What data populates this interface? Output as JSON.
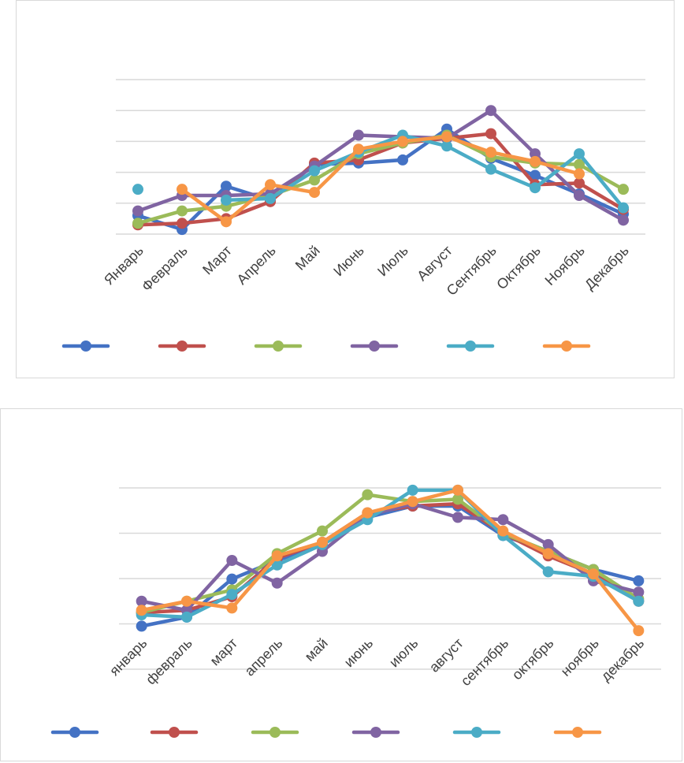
{
  "chart_data": [
    {
      "type": "line",
      "title": "",
      "xlabel": "",
      "ylabel": "",
      "categories": [
        "Январь",
        "Февраль",
        "Март",
        "Апрель",
        "Май",
        "Июнь",
        "Июль",
        "Август",
        "Сентябрь",
        "Октябрь",
        "Ноябрь",
        "Декабрь"
      ],
      "ylim": [
        0,
        5
      ],
      "grid": true,
      "legend_position": "bottom",
      "series": [
        {
          "color": "#4472C4",
          "values": [
            0.6,
            0.15,
            1.55,
            1.1,
            2.25,
            2.3,
            2.4,
            3.4,
            2.45,
            1.9,
            1.3,
            0.65
          ]
        },
        {
          "color": "#C0504D",
          "values": [
            0.3,
            0.35,
            0.5,
            1.05,
            2.3,
            2.4,
            2.95,
            3.1,
            3.25,
            1.6,
            1.65,
            0.8
          ]
        },
        {
          "color": "#9BBB59",
          "values": [
            0.35,
            0.75,
            0.9,
            1.25,
            1.75,
            2.6,
            2.95,
            3.2,
            2.5,
            2.3,
            2.25,
            1.45
          ]
        },
        {
          "color": "#8064A2",
          "values": [
            0.75,
            1.25,
            1.25,
            1.3,
            2.2,
            3.2,
            3.15,
            3.1,
            4.0,
            2.6,
            1.25,
            0.45
          ]
        },
        {
          "color": "#4BACC6",
          "values": [
            1.45,
            null,
            1.1,
            1.15,
            2.05,
            2.65,
            3.2,
            2.85,
            2.1,
            1.5,
            2.6,
            0.85
          ]
        },
        {
          "color": "#F79646",
          "values": [
            null,
            1.45,
            0.4,
            1.6,
            1.35,
            2.75,
            3.0,
            3.15,
            2.65,
            2.35,
            1.95,
            null
          ]
        }
      ]
    },
    {
      "type": "line",
      "title": "",
      "xlabel": "",
      "ylabel": "",
      "categories": [
        "январь",
        "февраль",
        "март",
        "апрель",
        "май",
        "июнь",
        "июль",
        "август",
        "сентябрь",
        "октябрь",
        "ноябрь",
        "декабрь"
      ],
      "ylim": [
        0,
        4
      ],
      "grid": true,
      "legend_position": "bottom",
      "series": [
        {
          "color": "#4472C4",
          "values": [
            0.95,
            1.15,
            1.99,
            2.4,
            2.75,
            3.35,
            3.6,
            3.6,
            2.95,
            2.6,
            2.2,
            1.95
          ]
        },
        {
          "color": "#C0504D",
          "values": [
            1.25,
            1.3,
            1.6,
            2.45,
            2.8,
            3.45,
            3.6,
            3.65,
            3.0,
            2.5,
            2.1,
            1.5
          ]
        },
        {
          "color": "#9BBB59",
          "values": [
            1.25,
            1.5,
            1.75,
            2.55,
            3.05,
            3.85,
            3.7,
            3.75,
            3.0,
            2.6,
            2.2,
            1.55
          ]
        },
        {
          "color": "#8064A2",
          "values": [
            1.5,
            1.3,
            2.4,
            1.9,
            2.6,
            3.4,
            3.65,
            3.35,
            3.3,
            2.75,
            1.95,
            1.7
          ]
        },
        {
          "color": "#4BACC6",
          "values": [
            1.2,
            1.15,
            1.65,
            2.3,
            2.75,
            3.3,
            3.95,
            3.95,
            2.95,
            2.15,
            2.05,
            1.5
          ]
        },
        {
          "color": "#F79646",
          "values": [
            1.3,
            1.5,
            1.35,
            2.5,
            2.8,
            3.45,
            3.7,
            3.95,
            3.05,
            2.55,
            2.1,
            0.85
          ]
        }
      ]
    }
  ]
}
